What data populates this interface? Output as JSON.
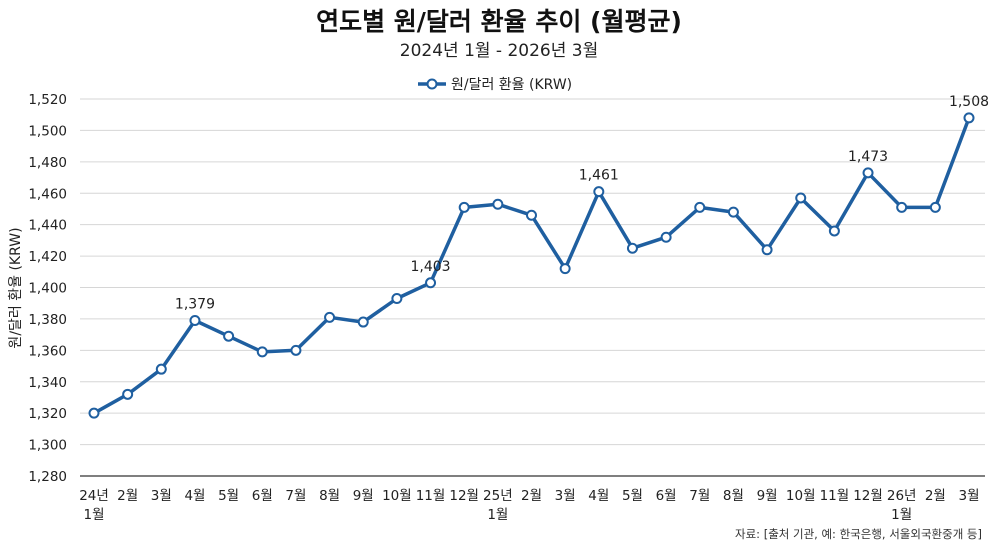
{
  "chart_data": {
    "type": "line",
    "title": "연도별 원/달러 환율 추이 (월평균)",
    "subtitle": "2024년 1월 - 2026년 3월",
    "ylabel": "원/달러 환율 (KRW)",
    "xlabel": "",
    "ylim": [
      1280,
      1520
    ],
    "yticks": [
      1280,
      1300,
      1320,
      1340,
      1360,
      1380,
      1400,
      1420,
      1440,
      1460,
      1480,
      1500,
      1520
    ],
    "ytick_labels": [
      "1,280",
      "1,300",
      "1,320",
      "1,340",
      "1,360",
      "1,380",
      "1,400",
      "1,420",
      "1,440",
      "1,460",
      "1,480",
      "1,500",
      "1,520"
    ],
    "grid": true,
    "legend_position": "top-center",
    "categories": [
      [
        "24년",
        "1월"
      ],
      [
        "2월"
      ],
      [
        "3월"
      ],
      [
        "4월"
      ],
      [
        "5월"
      ],
      [
        "6월"
      ],
      [
        "7월"
      ],
      [
        "8월"
      ],
      [
        "9월"
      ],
      [
        "10월"
      ],
      [
        "11월"
      ],
      [
        "12월"
      ],
      [
        "25년",
        "1월"
      ],
      [
        "2월"
      ],
      [
        "3월"
      ],
      [
        "4월"
      ],
      [
        "5월"
      ],
      [
        "6월"
      ],
      [
        "7월"
      ],
      [
        "8월"
      ],
      [
        "9월"
      ],
      [
        "10월"
      ],
      [
        "11월"
      ],
      [
        "12월"
      ],
      [
        "26년",
        "1월"
      ],
      [
        "2월"
      ],
      [
        "3월"
      ]
    ],
    "series": [
      {
        "name": "원/달러 환율 (KRW)",
        "color": "#1f5fa0",
        "values": [
          1320,
          1332,
          1348,
          1379,
          1369,
          1359,
          1360,
          1381,
          1378,
          1393,
          1403,
          1451,
          1453,
          1446,
          1412,
          1461,
          1425,
          1432,
          1451,
          1448,
          1424,
          1457,
          1436,
          1473,
          1451,
          1451,
          1508
        ]
      }
    ],
    "annotations": [
      {
        "index": 3,
        "text": "1,379"
      },
      {
        "index": 10,
        "text": "1,403"
      },
      {
        "index": 15,
        "text": "1,461"
      },
      {
        "index": 23,
        "text": "1,473"
      },
      {
        "index": 26,
        "text": "1,508"
      }
    ],
    "source": "자료: [출처 기관, 예: 한국은행, 서울외국환중개 등]"
  }
}
